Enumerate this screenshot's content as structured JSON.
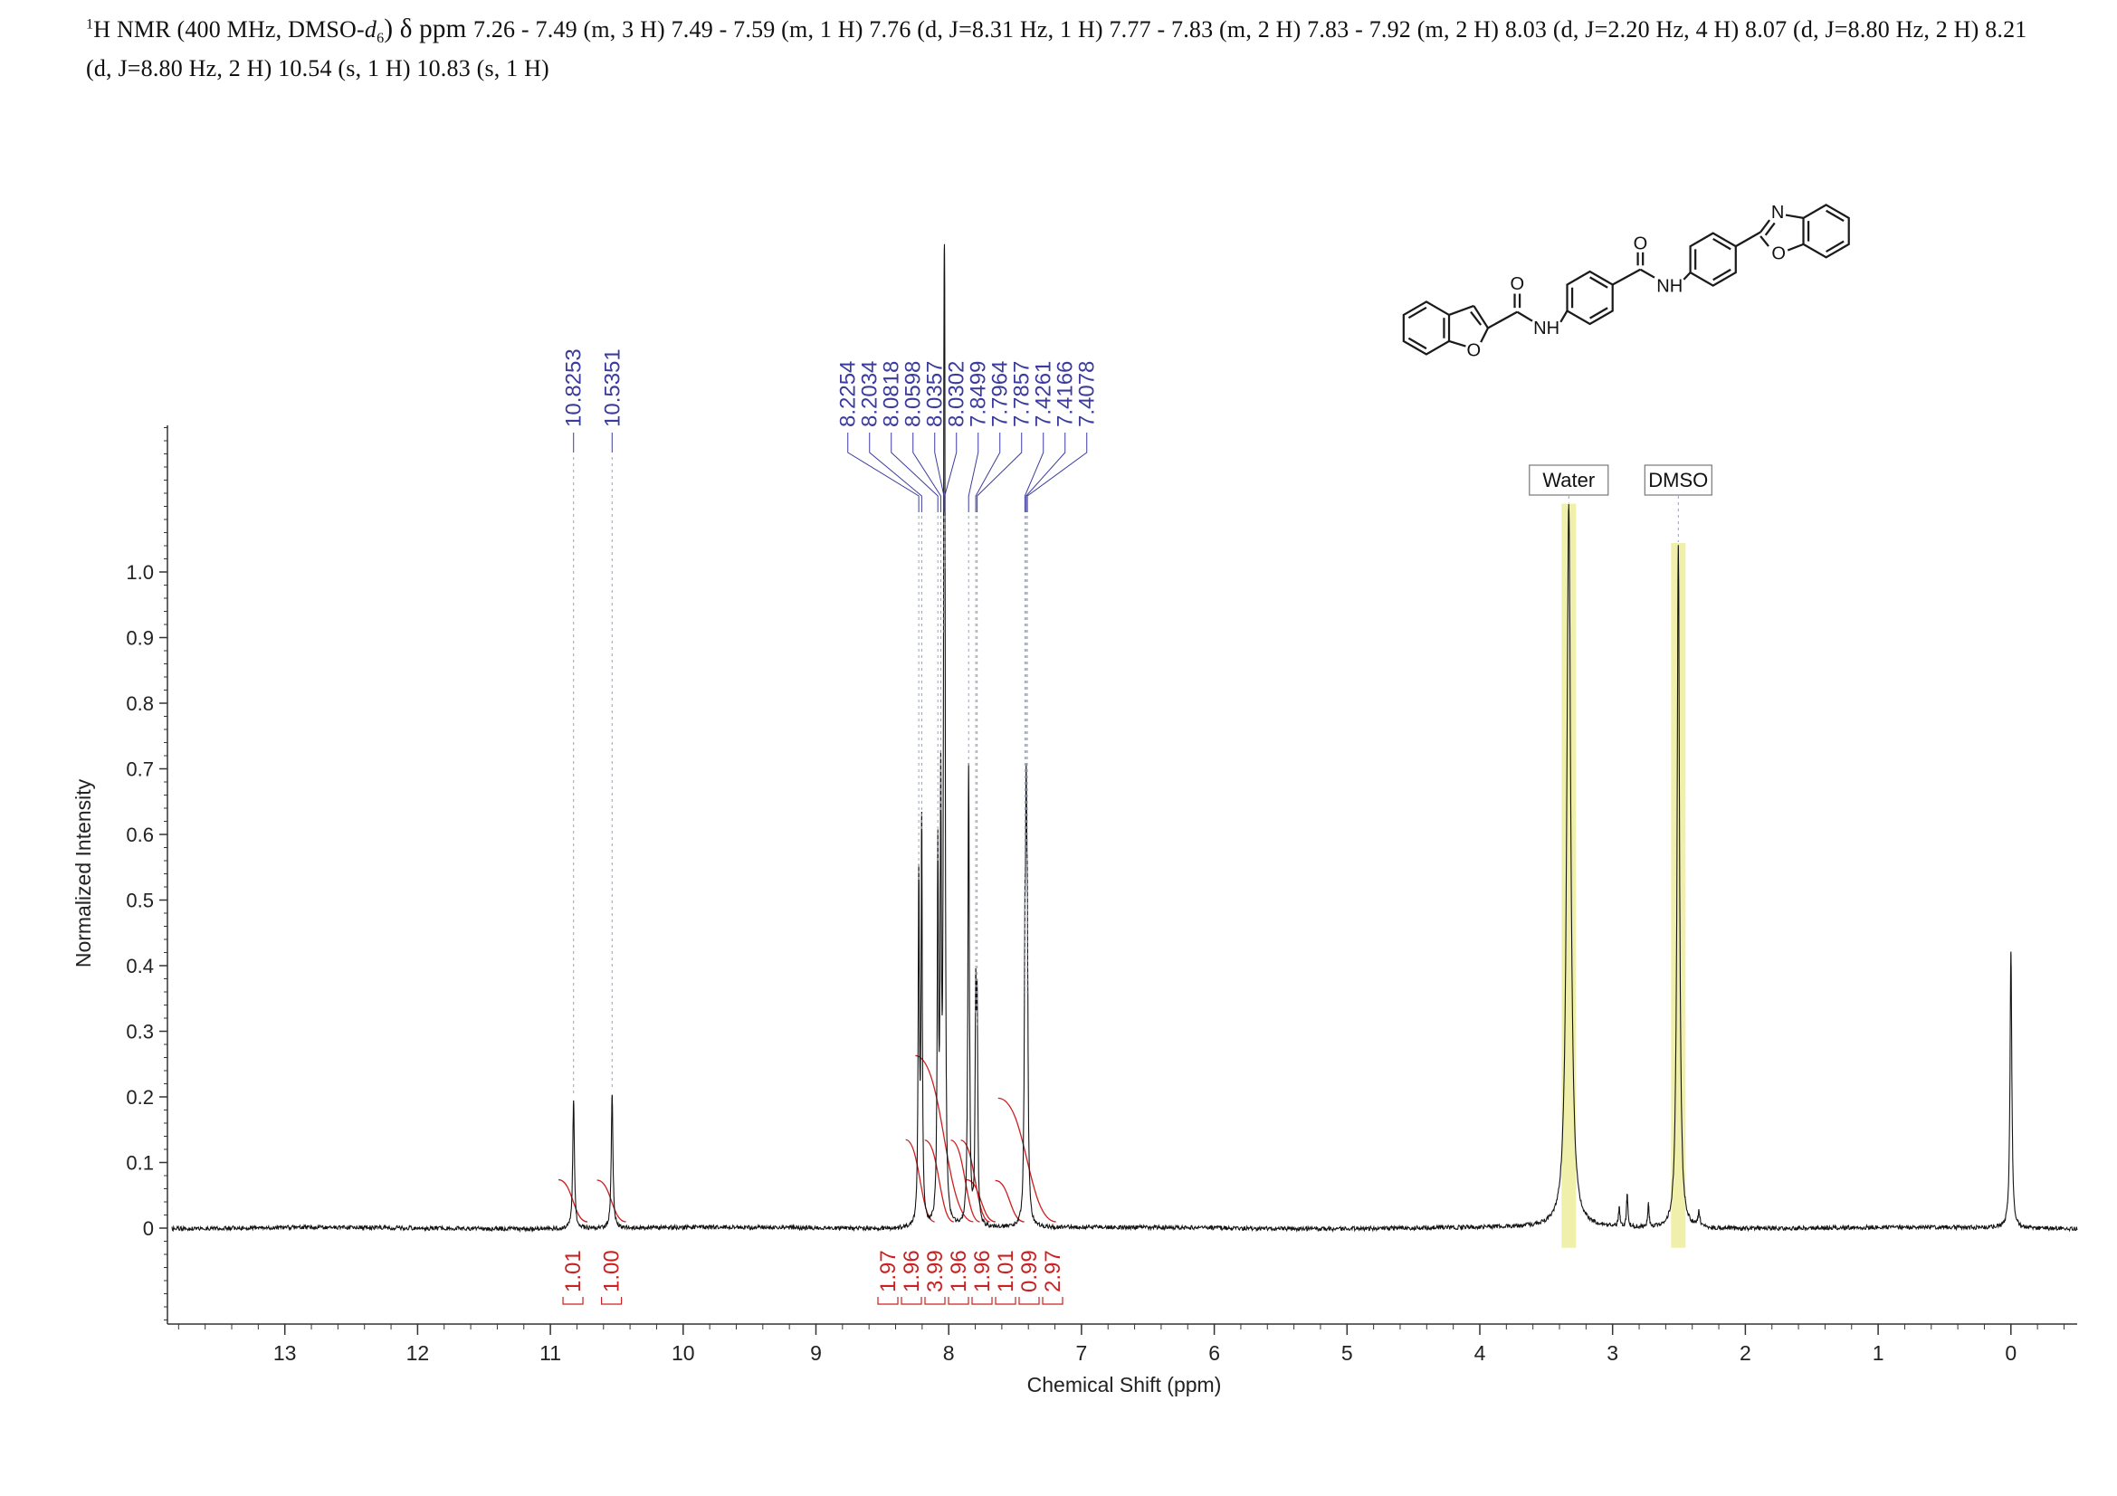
{
  "header": {
    "sup": "1",
    "prefix": "H NMR (400 MHz, DMSO-",
    "solvent_italic": "d",
    "solvent_sub": "6",
    "part2": ") δ ppm ",
    "assignments": "7.26 - 7.49 (m, 3 H) 7.49 - 7.59 (m, 1 H) 7.76 (d, J=8.31 Hz, 1 H) 7.77 - 7.83 (m, 2 H) 7.83 - 7.92 (m, 2 H) 8.03 (d, J=2.20 Hz, 4 H) 8.07 (d, J=8.80 Hz, 2 H) 8.21 (d, J=8.80 Hz, 2 H) 10.54 (s, 1 H) 10.83 (s, 1 H)"
  },
  "molecule": {
    "o_furan": "O",
    "o_amide1": "O",
    "nh1": "NH",
    "o_amide2": "O",
    "nh2": "NH",
    "n_benzoxazole": "N",
    "o_benzoxazole": "O"
  },
  "chart_data": {
    "type": "line",
    "title": "1H NMR (400 MHz, DMSO-d6)",
    "xlabel": "Chemical Shift (ppm)",
    "ylabel": "Normalized Intensity",
    "x_axis_reversed": true,
    "xlim": [
      13.85,
      -0.5
    ],
    "ylim": [
      -0.15,
      1.25
    ],
    "x_ticks": [
      13,
      12,
      11,
      10,
      9,
      8,
      7,
      6,
      5,
      4,
      3,
      2,
      1,
      0
    ],
    "y_ticks": [
      "0",
      "0.1",
      "0.2",
      "0.3",
      "0.4",
      "0.5",
      "0.6",
      "0.7",
      "0.8",
      "0.9",
      "1.0"
    ],
    "peak_labels": [
      "10.8253",
      "10.5351",
      "8.2254",
      "8.2034",
      "8.0818",
      "8.0598",
      "8.0357",
      "8.0302",
      "7.8499",
      "7.7964",
      "7.7857",
      "7.4261",
      "7.4166",
      "7.4078"
    ],
    "peaks": [
      {
        "ppm": 10.8253,
        "height": 0.195,
        "width": 0.0075
      },
      {
        "ppm": 10.5351,
        "height": 0.205,
        "width": 0.0075
      },
      {
        "ppm": 8.2254,
        "height": 0.52,
        "width": 0.0055
      },
      {
        "ppm": 8.2034,
        "height": 0.6,
        "width": 0.0055
      },
      {
        "ppm": 8.0818,
        "height": 0.55,
        "width": 0.0055
      },
      {
        "ppm": 8.0598,
        "height": 0.63,
        "width": 0.0055
      },
      {
        "ppm": 8.0357,
        "height": 0.9,
        "width": 0.005
      },
      {
        "ppm": 8.0302,
        "height": 1.0,
        "width": 0.005
      },
      {
        "ppm": 7.8499,
        "height": 0.7,
        "width": 0.0065
      },
      {
        "ppm": 7.7964,
        "height": 0.32,
        "width": 0.0055
      },
      {
        "ppm": 7.7857,
        "height": 0.3,
        "width": 0.0055
      },
      {
        "ppm": 7.4261,
        "height": 0.33,
        "width": 0.006
      },
      {
        "ppm": 7.4166,
        "height": 0.5,
        "width": 0.006
      },
      {
        "ppm": 7.4078,
        "height": 0.35,
        "width": 0.006
      },
      {
        "ppm": 3.33,
        "height": 1.1,
        "width": 0.018
      },
      {
        "ppm": 2.505,
        "height": 1.04,
        "width": 0.011
      },
      {
        "ppm": 2.95,
        "height": 0.028,
        "width": 0.007
      },
      {
        "ppm": 2.89,
        "height": 0.05,
        "width": 0.006
      },
      {
        "ppm": 2.73,
        "height": 0.034,
        "width": 0.006
      },
      {
        "ppm": 2.35,
        "height": 0.022,
        "width": 0.008
      },
      {
        "ppm": 0.0,
        "height": 0.42,
        "width": 0.008
      }
    ],
    "integrals": [
      {
        "value": "1.01",
        "ppm": 10.83
      },
      {
        "value": "1.00",
        "ppm": 10.54
      },
      {
        "value": "1.97",
        "ppm": 8.215
      },
      {
        "value": "1.96",
        "ppm": 8.071
      },
      {
        "value": "3.99",
        "ppm": 8.033
      },
      {
        "value": "1.96",
        "ppm": 7.875
      },
      {
        "value": "1.96",
        "ppm": 7.8
      },
      {
        "value": "1.01",
        "ppm": 7.757
      },
      {
        "value": "0.99",
        "ppm": 7.54
      },
      {
        "value": "2.97",
        "ppm": 7.41
      }
    ],
    "solvent_labels": [
      {
        "text": "Water",
        "ppm": 3.33
      },
      {
        "text": "DMSO",
        "ppm": 2.505
      }
    ],
    "colors": {
      "peak_label": "#3b3b9e",
      "integral": "#cc2020",
      "spectrum": "#141414",
      "highlight": "#f0f0ac",
      "axis": "#333333"
    }
  }
}
